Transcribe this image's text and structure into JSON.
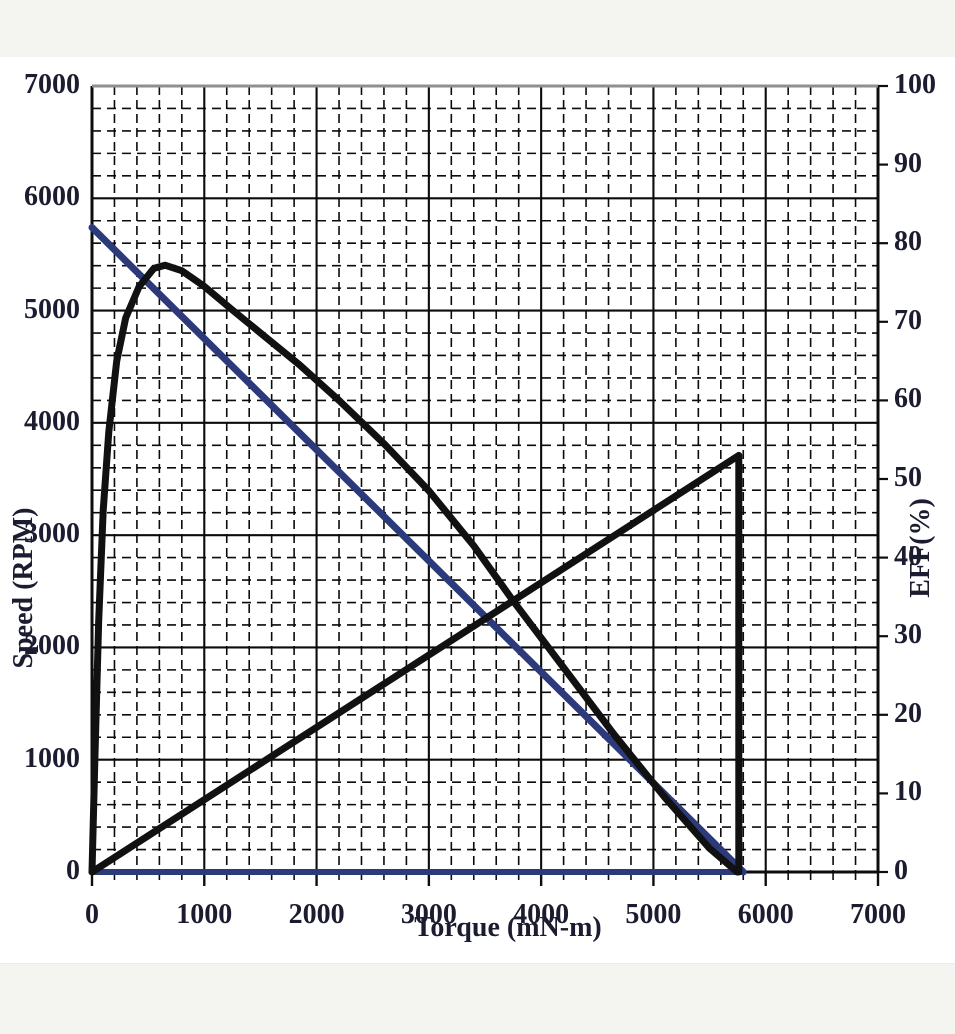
{
  "page": {
    "background": "#f6f6f4",
    "canvas_background": "#ffffff",
    "band_color": "#f4f4f1"
  },
  "chart_data": {
    "type": "line",
    "title": "",
    "description_visible_text_only": true,
    "x_axis": {
      "label": "Torque (mN-m)",
      "min": 0,
      "max": 7000,
      "major_tick_step": 1000,
      "minor_grid_step": 200,
      "tick_labels": [
        "0",
        "1000",
        "2000",
        "3000",
        "4000",
        "5000",
        "6000",
        "7000"
      ]
    },
    "y_axis_left": {
      "label": "Speed (RPM)",
      "min": 0,
      "max": 7000,
      "major_tick_step": 1000,
      "minor_grid_step": 200,
      "tick_labels": [
        "7000",
        "6000",
        "5000",
        "4000",
        "3000",
        "2000",
        "1000",
        "0"
      ]
    },
    "y_axis_right": {
      "label": "EFF(%)",
      "min": 0,
      "max": 100,
      "major_tick_step": 10,
      "tick_labels": [
        "100",
        "90",
        "80",
        "70",
        "60",
        "50",
        "40",
        "30",
        "20",
        "10",
        "0"
      ]
    },
    "grid": {
      "on": true,
      "style": "dashed",
      "minor_step": 200,
      "color": "#0b0b0b"
    },
    "legend": {
      "shown": false
    },
    "colors": {
      "speed_line": "#2c3a7c",
      "black_curves": "#111111",
      "axis_frame": "#0d0d0d",
      "frame_top": "#8f8f8f"
    },
    "series": [
      {
        "name": "speed-torque-line",
        "axis": "left",
        "color": "#2c3a7c",
        "width": 7,
        "points": [
          [
            0,
            5740
          ],
          [
            5800,
            0
          ]
        ]
      },
      {
        "name": "speed-zero-baseline",
        "axis": "left",
        "color": "#2c3a7c",
        "width": 6,
        "points": [
          [
            0,
            0
          ],
          [
            5800,
            0
          ]
        ]
      },
      {
        "name": "efficiency-curve",
        "axis": "right",
        "color": "#111111",
        "width": 7,
        "points": [
          [
            0,
            0
          ],
          [
            25,
            14
          ],
          [
            60,
            32
          ],
          [
            100,
            46
          ],
          [
            150,
            56
          ],
          [
            220,
            65
          ],
          [
            300,
            70.5
          ],
          [
            420,
            74.5
          ],
          [
            550,
            76.8
          ],
          [
            650,
            77.2
          ],
          [
            800,
            76.5
          ],
          [
            1000,
            74.5
          ],
          [
            1250,
            71.5
          ],
          [
            1550,
            68
          ],
          [
            1850,
            64.5
          ],
          [
            2200,
            60
          ],
          [
            2600,
            54.5
          ],
          [
            3000,
            48.5
          ],
          [
            3400,
            41.5
          ],
          [
            3750,
            34.5
          ],
          [
            4200,
            26
          ],
          [
            4650,
            17.5
          ],
          [
            5100,
            9.5
          ],
          [
            5500,
            3
          ],
          [
            5745,
            0
          ]
        ]
      },
      {
        "name": "rising-line-with-cutoff",
        "axis": "left",
        "color": "#111111",
        "width": 7,
        "points": [
          [
            0,
            0
          ],
          [
            5760,
            3710
          ],
          [
            5760,
            0
          ]
        ]
      }
    ],
    "annotations": {
      "efficiency_peak_pct": 77,
      "efficiency_peak_torque": 650,
      "no_load_speed_rpm": 5740,
      "stall_torque_mn_m": 5800,
      "rising_line_peak_left_axis_value": 3710
    }
  }
}
